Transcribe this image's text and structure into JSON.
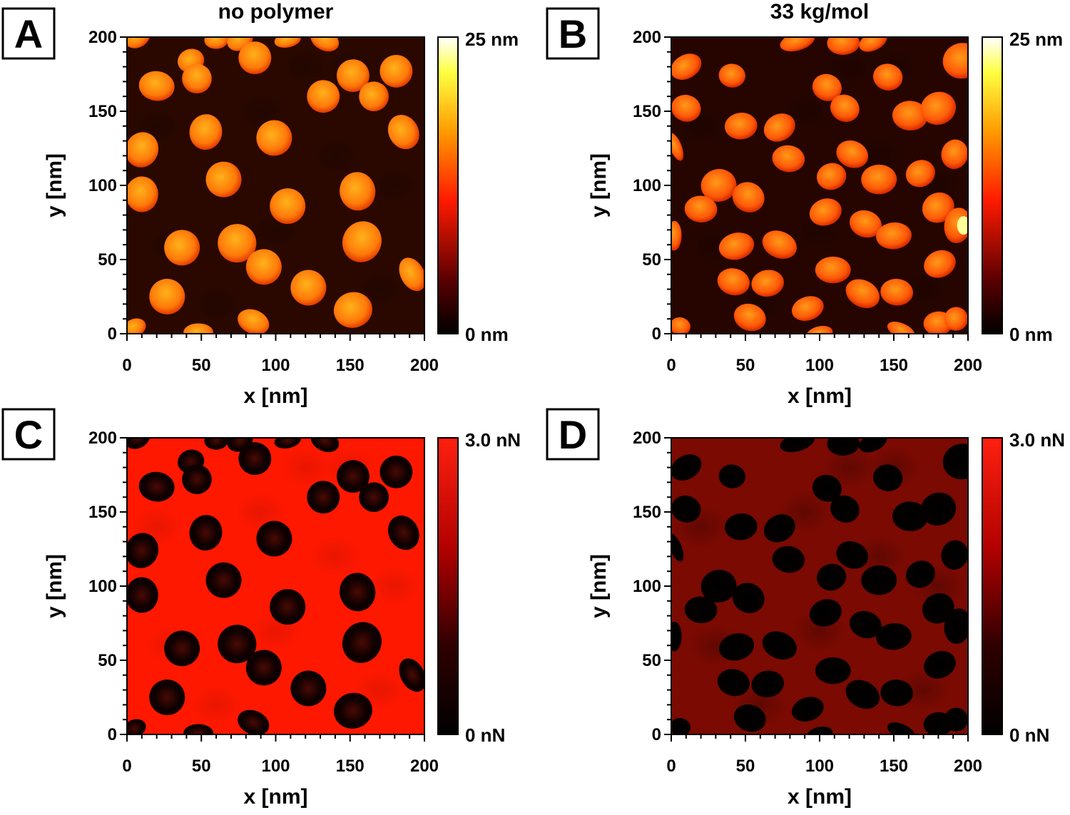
{
  "panels": [
    {
      "letter": "A",
      "title": "no polymer",
      "image_content": "AFM height map: bright orange-yellow rounded domains on dark brown background",
      "colorbar": {
        "type": "height",
        "max_label": "25 nm",
        "min_label": "0 nm",
        "colormap": [
          "#000000",
          "#5a0000",
          "#ff1a00",
          "#ff9a00",
          "#ffff40",
          "#ffffff"
        ]
      },
      "x_ticks": [
        "0",
        "50",
        "100",
        "150",
        "200"
      ],
      "y_ticks": [
        "0",
        "50",
        "100",
        "150",
        "200"
      ],
      "xlabel": "x [nm]",
      "ylabel": "y [nm]"
    },
    {
      "letter": "B",
      "title": "33 kg/mol",
      "image_content": "AFM height map: orange domains, some merged into elongated clusters",
      "colorbar": {
        "type": "height",
        "max_label": "25 nm",
        "min_label": "0 nm",
        "colormap": [
          "#000000",
          "#5a0000",
          "#ff1a00",
          "#ff9a00",
          "#ffff40",
          "#ffffff"
        ]
      },
      "x_ticks": [
        "0",
        "50",
        "100",
        "150",
        "200"
      ],
      "y_ticks": [
        "0",
        "50",
        "100",
        "150",
        "200"
      ],
      "xlabel": "x [nm]",
      "ylabel": "y [nm]"
    },
    {
      "letter": "C",
      "title": "",
      "image_content": "AFM adhesion map: dark domains on bright red matrix",
      "colorbar": {
        "type": "force",
        "max_label": "3.0 nN",
        "min_label": "0 nN",
        "colormap": [
          "#000000",
          "#300000",
          "#b00000",
          "#ff2010"
        ]
      },
      "x_ticks": [
        "0",
        "50",
        "100",
        "150",
        "200"
      ],
      "y_ticks": [
        "0",
        "50",
        "100",
        "150",
        "200"
      ],
      "xlabel": "x [nm]",
      "ylabel": "y [nm]"
    },
    {
      "letter": "D",
      "title": "",
      "image_content": "AFM adhesion map: black domains and clusters on dark red matrix",
      "colorbar": {
        "type": "force",
        "max_label": "3.0 nN",
        "min_label": "0 nN",
        "colormap": [
          "#000000",
          "#300000",
          "#b00000",
          "#ff2010"
        ]
      },
      "x_ticks": [
        "0",
        "50",
        "100",
        "150",
        "200"
      ],
      "y_ticks": [
        "0",
        "50",
        "100",
        "150",
        "200"
      ],
      "xlabel": "x [nm]",
      "ylabel": "y [nm]"
    }
  ],
  "domains": {
    "A": [
      [
        7,
        200,
        9,
        7
      ],
      [
        20,
        167,
        12,
        10
      ],
      [
        43,
        184,
        9,
        8
      ],
      [
        47,
        172,
        10,
        10
      ],
      [
        60,
        198,
        8,
        6
      ],
      [
        76,
        198,
        9,
        7
      ],
      [
        86,
        186,
        11,
        11
      ],
      [
        108,
        198,
        9,
        5
      ],
      [
        133,
        198,
        10,
        7
      ],
      [
        152,
        174,
        11,
        11
      ],
      [
        166,
        160,
        10,
        10
      ],
      [
        132,
        160,
        11,
        11
      ],
      [
        181,
        177,
        11,
        11
      ],
      [
        186,
        136,
        10,
        12
      ],
      [
        53,
        136,
        11,
        12
      ],
      [
        99,
        132,
        12,
        12
      ],
      [
        10,
        124,
        11,
        12
      ],
      [
        10,
        94,
        11,
        12
      ],
      [
        65,
        104,
        12,
        12
      ],
      [
        108,
        86,
        12,
        12
      ],
      [
        155,
        96,
        12,
        13
      ],
      [
        158,
        62,
        13,
        14
      ],
      [
        74,
        61,
        13,
        13
      ],
      [
        37,
        58,
        12,
        12
      ],
      [
        92,
        45,
        12,
        12
      ],
      [
        122,
        31,
        12,
        12
      ],
      [
        192,
        40,
        8,
        12
      ],
      [
        27,
        25,
        12,
        12
      ],
      [
        152,
        16,
        13,
        12
      ],
      [
        85,
        8,
        11,
        8
      ],
      [
        48,
        1,
        10,
        6
      ],
      [
        5,
        4,
        8,
        6
      ]
    ],
    "B": [
      [
        10,
        180,
        11,
        8
      ],
      [
        41,
        174,
        9,
        8
      ],
      [
        85,
        197,
        12,
        6
      ],
      [
        105,
        166,
        10,
        9
      ],
      [
        116,
        196,
        11,
        8
      ],
      [
        136,
        197,
        10,
        6
      ],
      [
        146,
        173,
        10,
        9
      ],
      [
        196,
        184,
        13,
        12
      ],
      [
        117,
        152,
        10,
        9
      ],
      [
        161,
        147,
        12,
        10
      ],
      [
        180,
        152,
        12,
        11
      ],
      [
        10,
        152,
        10,
        9
      ],
      [
        47,
        140,
        11,
        9
      ],
      [
        73,
        139,
        11,
        9
      ],
      [
        79,
        118,
        11,
        9
      ],
      [
        108,
        106,
        10,
        9
      ],
      [
        122,
        121,
        11,
        9
      ],
      [
        140,
        104,
        12,
        10
      ],
      [
        168,
        108,
        10,
        9
      ],
      [
        191,
        121,
        9,
        10
      ],
      [
        32,
        100,
        12,
        11
      ],
      [
        52,
        92,
        11,
        10
      ],
      [
        20,
        84,
        11,
        9
      ],
      [
        104,
        82,
        11,
        9
      ],
      [
        131,
        74,
        11,
        9
      ],
      [
        150,
        66,
        12,
        9
      ],
      [
        180,
        85,
        11,
        10
      ],
      [
        193,
        73,
        9,
        12
      ],
      [
        44,
        59,
        12,
        9
      ],
      [
        73,
        60,
        12,
        9
      ],
      [
        109,
        43,
        12,
        9
      ],
      [
        181,
        47,
        11,
        9
      ],
      [
        42,
        35,
        11,
        9
      ],
      [
        65,
        34,
        11,
        9
      ],
      [
        129,
        27,
        12,
        9
      ],
      [
        152,
        28,
        11,
        9
      ],
      [
        92,
        17,
        11,
        8
      ],
      [
        53,
        11,
        11,
        9
      ],
      [
        180,
        7,
        10,
        8
      ],
      [
        192,
        10,
        8,
        8
      ],
      [
        6,
        5,
        7,
        6
      ],
      [
        100,
        0,
        9,
        5
      ],
      [
        155,
        2,
        10,
        5
      ],
      [
        2,
        66,
        5,
        10
      ],
      [
        3,
        126,
        4,
        10
      ]
    ],
    "D": [
      [
        10,
        180,
        11,
        8
      ],
      [
        41,
        174,
        9,
        8
      ],
      [
        85,
        197,
        12,
        6
      ],
      [
        105,
        166,
        10,
        9
      ],
      [
        116,
        196,
        11,
        8
      ],
      [
        136,
        197,
        10,
        6
      ],
      [
        146,
        173,
        10,
        9
      ],
      [
        196,
        184,
        13,
        12
      ],
      [
        117,
        152,
        10,
        9
      ],
      [
        161,
        147,
        12,
        10
      ],
      [
        180,
        152,
        12,
        11
      ],
      [
        10,
        152,
        10,
        9
      ],
      [
        47,
        140,
        11,
        9
      ],
      [
        73,
        139,
        11,
        9
      ],
      [
        79,
        118,
        11,
        9
      ],
      [
        108,
        106,
        10,
        9
      ],
      [
        122,
        121,
        11,
        9
      ],
      [
        140,
        104,
        12,
        10
      ],
      [
        168,
        108,
        10,
        9
      ],
      [
        191,
        121,
        9,
        10
      ],
      [
        32,
        100,
        12,
        11
      ],
      [
        52,
        92,
        11,
        10
      ],
      [
        20,
        84,
        11,
        9
      ],
      [
        104,
        82,
        11,
        9
      ],
      [
        131,
        74,
        11,
        9
      ],
      [
        150,
        66,
        12,
        9
      ],
      [
        180,
        85,
        11,
        10
      ],
      [
        193,
        73,
        9,
        12
      ],
      [
        44,
        59,
        12,
        9
      ],
      [
        73,
        60,
        12,
        9
      ],
      [
        109,
        43,
        12,
        9
      ],
      [
        181,
        47,
        11,
        9
      ],
      [
        42,
        35,
        11,
        9
      ],
      [
        65,
        34,
        11,
        9
      ],
      [
        129,
        27,
        12,
        9
      ],
      [
        152,
        28,
        11,
        9
      ],
      [
        92,
        17,
        11,
        8
      ],
      [
        53,
        11,
        11,
        9
      ],
      [
        180,
        7,
        10,
        8
      ],
      [
        192,
        10,
        8,
        8
      ],
      [
        6,
        5,
        7,
        6
      ],
      [
        100,
        0,
        9,
        5
      ],
      [
        155,
        2,
        10,
        5
      ],
      [
        2,
        66,
        5,
        10
      ],
      [
        3,
        126,
        4,
        10
      ]
    ],
    "C": [
      [
        7,
        200,
        9,
        7
      ],
      [
        20,
        167,
        12,
        10
      ],
      [
        43,
        184,
        9,
        8
      ],
      [
        47,
        172,
        10,
        10
      ],
      [
        60,
        198,
        8,
        6
      ],
      [
        76,
        198,
        9,
        7
      ],
      [
        86,
        186,
        11,
        11
      ],
      [
        108,
        198,
        9,
        5
      ],
      [
        133,
        198,
        10,
        7
      ],
      [
        152,
        174,
        11,
        11
      ],
      [
        166,
        160,
        10,
        10
      ],
      [
        132,
        160,
        11,
        11
      ],
      [
        181,
        177,
        11,
        11
      ],
      [
        186,
        136,
        10,
        12
      ],
      [
        53,
        136,
        11,
        12
      ],
      [
        99,
        132,
        12,
        12
      ],
      [
        10,
        124,
        11,
        12
      ],
      [
        10,
        94,
        11,
        12
      ],
      [
        65,
        104,
        12,
        12
      ],
      [
        108,
        86,
        12,
        12
      ],
      [
        155,
        96,
        12,
        13
      ],
      [
        158,
        62,
        13,
        14
      ],
      [
        74,
        61,
        13,
        13
      ],
      [
        37,
        58,
        12,
        12
      ],
      [
        92,
        45,
        12,
        12
      ],
      [
        122,
        31,
        12,
        12
      ],
      [
        192,
        40,
        8,
        12
      ],
      [
        27,
        25,
        12,
        12
      ],
      [
        152,
        16,
        13,
        12
      ],
      [
        85,
        8,
        11,
        8
      ],
      [
        48,
        1,
        10,
        6
      ],
      [
        5,
        4,
        8,
        6
      ]
    ]
  }
}
